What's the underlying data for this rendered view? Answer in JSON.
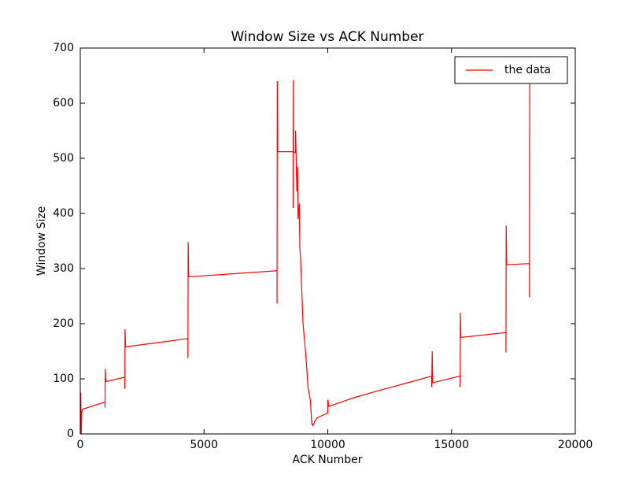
{
  "chart_data": {
    "type": "line",
    "title": "Window Size vs ACK Number",
    "x_label": "ACK Number",
    "y_label": "Window Size",
    "series": [
      {
        "name": "the data",
        "color": "#ff0000",
        "x": [
          0,
          20,
          40,
          60,
          100,
          1000,
          1000,
          1010,
          1030,
          1800,
          1800,
          1810,
          1830,
          4350,
          4350,
          4360,
          4380,
          7950,
          7950,
          7960,
          7980,
          8600,
          8600,
          8610,
          8620,
          8700,
          8700,
          8750,
          8780,
          8800,
          8850,
          8870,
          8900,
          8950,
          9000,
          9100,
          9150,
          9200,
          9300,
          9350,
          9400,
          9500,
          9600,
          10000,
          10000,
          10050,
          11000,
          12000,
          13000,
          14200,
          14200,
          14220,
          14240,
          15350,
          15350,
          15360,
          15380,
          17200,
          17200,
          17210,
          17230,
          18150,
          18150,
          18160
        ],
        "values": [
          5,
          75,
          0,
          40,
          45,
          58,
          48,
          118,
          95,
          103,
          82,
          190,
          158,
          173,
          138,
          348,
          285,
          296,
          236,
          640,
          512,
          512,
          410,
          642,
          512,
          510,
          550,
          440,
          485,
          390,
          418,
          340,
          320,
          260,
          200,
          150,
          120,
          85,
          60,
          20,
          15,
          25,
          30,
          38,
          62,
          50,
          65,
          78,
          90,
          105,
          85,
          150,
          93,
          105,
          85,
          220,
          175,
          184,
          148,
          378,
          307,
          309,
          248,
          635
        ]
      }
    ],
    "xlim": [
      0,
      20000
    ],
    "xticks": [
      0,
      5000,
      10000,
      15000,
      20000
    ],
    "ylim": [
      0,
      700
    ],
    "yticks": [
      0,
      100,
      200,
      300,
      400,
      500,
      600,
      700
    ],
    "legend": "upper right"
  }
}
